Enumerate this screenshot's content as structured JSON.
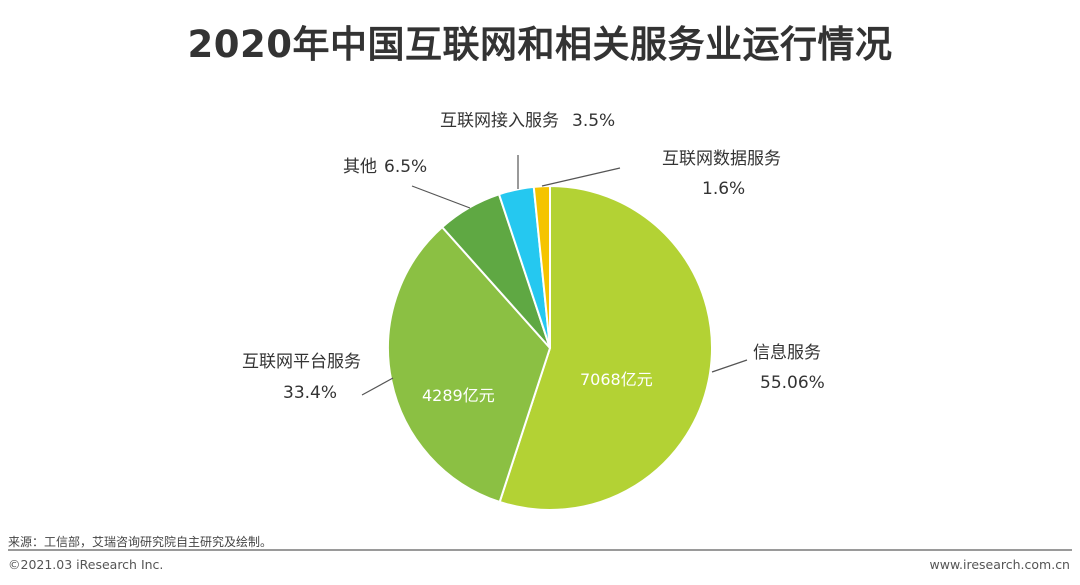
{
  "title": "2020年中国互联网和相关服务业运行情况",
  "chart_data": {
    "type": "pie",
    "title": "2020年中国互联网和相关服务业运行情况",
    "slices": [
      {
        "label": "信息服务",
        "pct_label": "55.06%",
        "value": 55.06,
        "amount_label": "7068亿元",
        "color": "#b3d234"
      },
      {
        "label": "互联网平台服务",
        "pct_label": "33.4%",
        "value": 33.4,
        "amount_label": "4289亿元",
        "color": "#8bc043"
      },
      {
        "label": "其他",
        "pct_label": "6.5%",
        "value": 6.5,
        "amount_label": "",
        "color": "#5fa843"
      },
      {
        "label": "互联网接入服务",
        "pct_label": "3.5%",
        "value": 3.5,
        "amount_label": "",
        "color": "#25c8f0"
      },
      {
        "label": "互联网数据服务",
        "pct_label": "1.6%",
        "value": 1.6,
        "amount_label": "",
        "color": "#f5c400"
      }
    ]
  },
  "footer": {
    "source": "来源：工信部，艾瑞咨询研究院自主研究及绘制。",
    "copyright": "©2021.03 iResearch Inc.",
    "site": "www.iresearch.com.cn"
  }
}
